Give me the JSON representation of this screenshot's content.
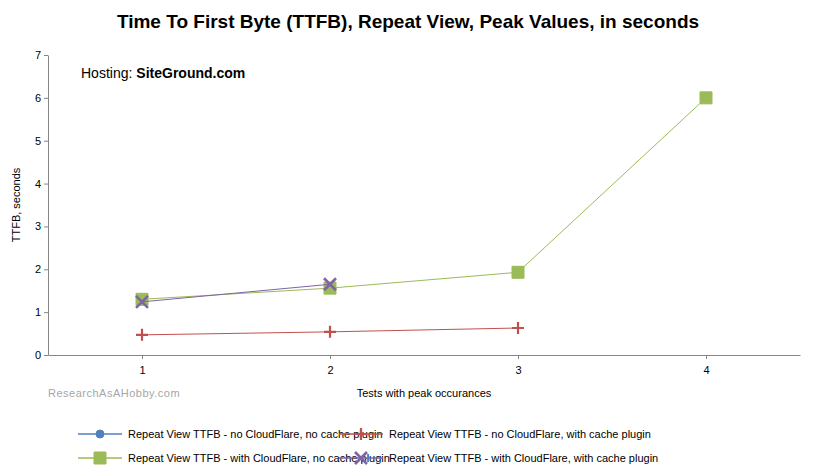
{
  "chart_data": {
    "type": "line",
    "title": "Time To First Byte (TTFB), Repeat View, Peak Values, in seconds",
    "annotations": [
      "Hosting:",
      "SiteGround.com",
      "ResearchAsAHobby.com"
    ],
    "x_label": "Tests with peak occurances",
    "y_label": "TTFB, seconds",
    "categories": [
      "1",
      "2",
      "3",
      "4"
    ],
    "ylim": [
      0,
      7
    ],
    "yticks": [
      0,
      1,
      2,
      3,
      4,
      5,
      6,
      7
    ],
    "grid": false,
    "legend": "bottom",
    "series": [
      {
        "name": "Repeat View TTFB - no CloudFlare, no cache plugin",
        "color": "#4f81bd",
        "marker": "circle",
        "values": [
          null,
          null,
          null,
          null
        ]
      },
      {
        "name": "Repeat View TTFB - no CloudFlare, with cache plugin",
        "color": "#c0504d",
        "marker": "plus",
        "values": [
          0.47,
          0.54,
          0.63,
          null
        ]
      },
      {
        "name": "Repeat View TTFB - with CloudFlare, no cache plugin",
        "color": "#9bbb59",
        "marker": "square",
        "values": [
          1.3,
          1.56,
          1.93,
          6.0
        ]
      },
      {
        "name": "Repeat View TTFB - with CloudFlare, with cache plugin",
        "color": "#8064a2",
        "marker": "x",
        "values": [
          1.24,
          1.65,
          null,
          null
        ]
      }
    ]
  }
}
